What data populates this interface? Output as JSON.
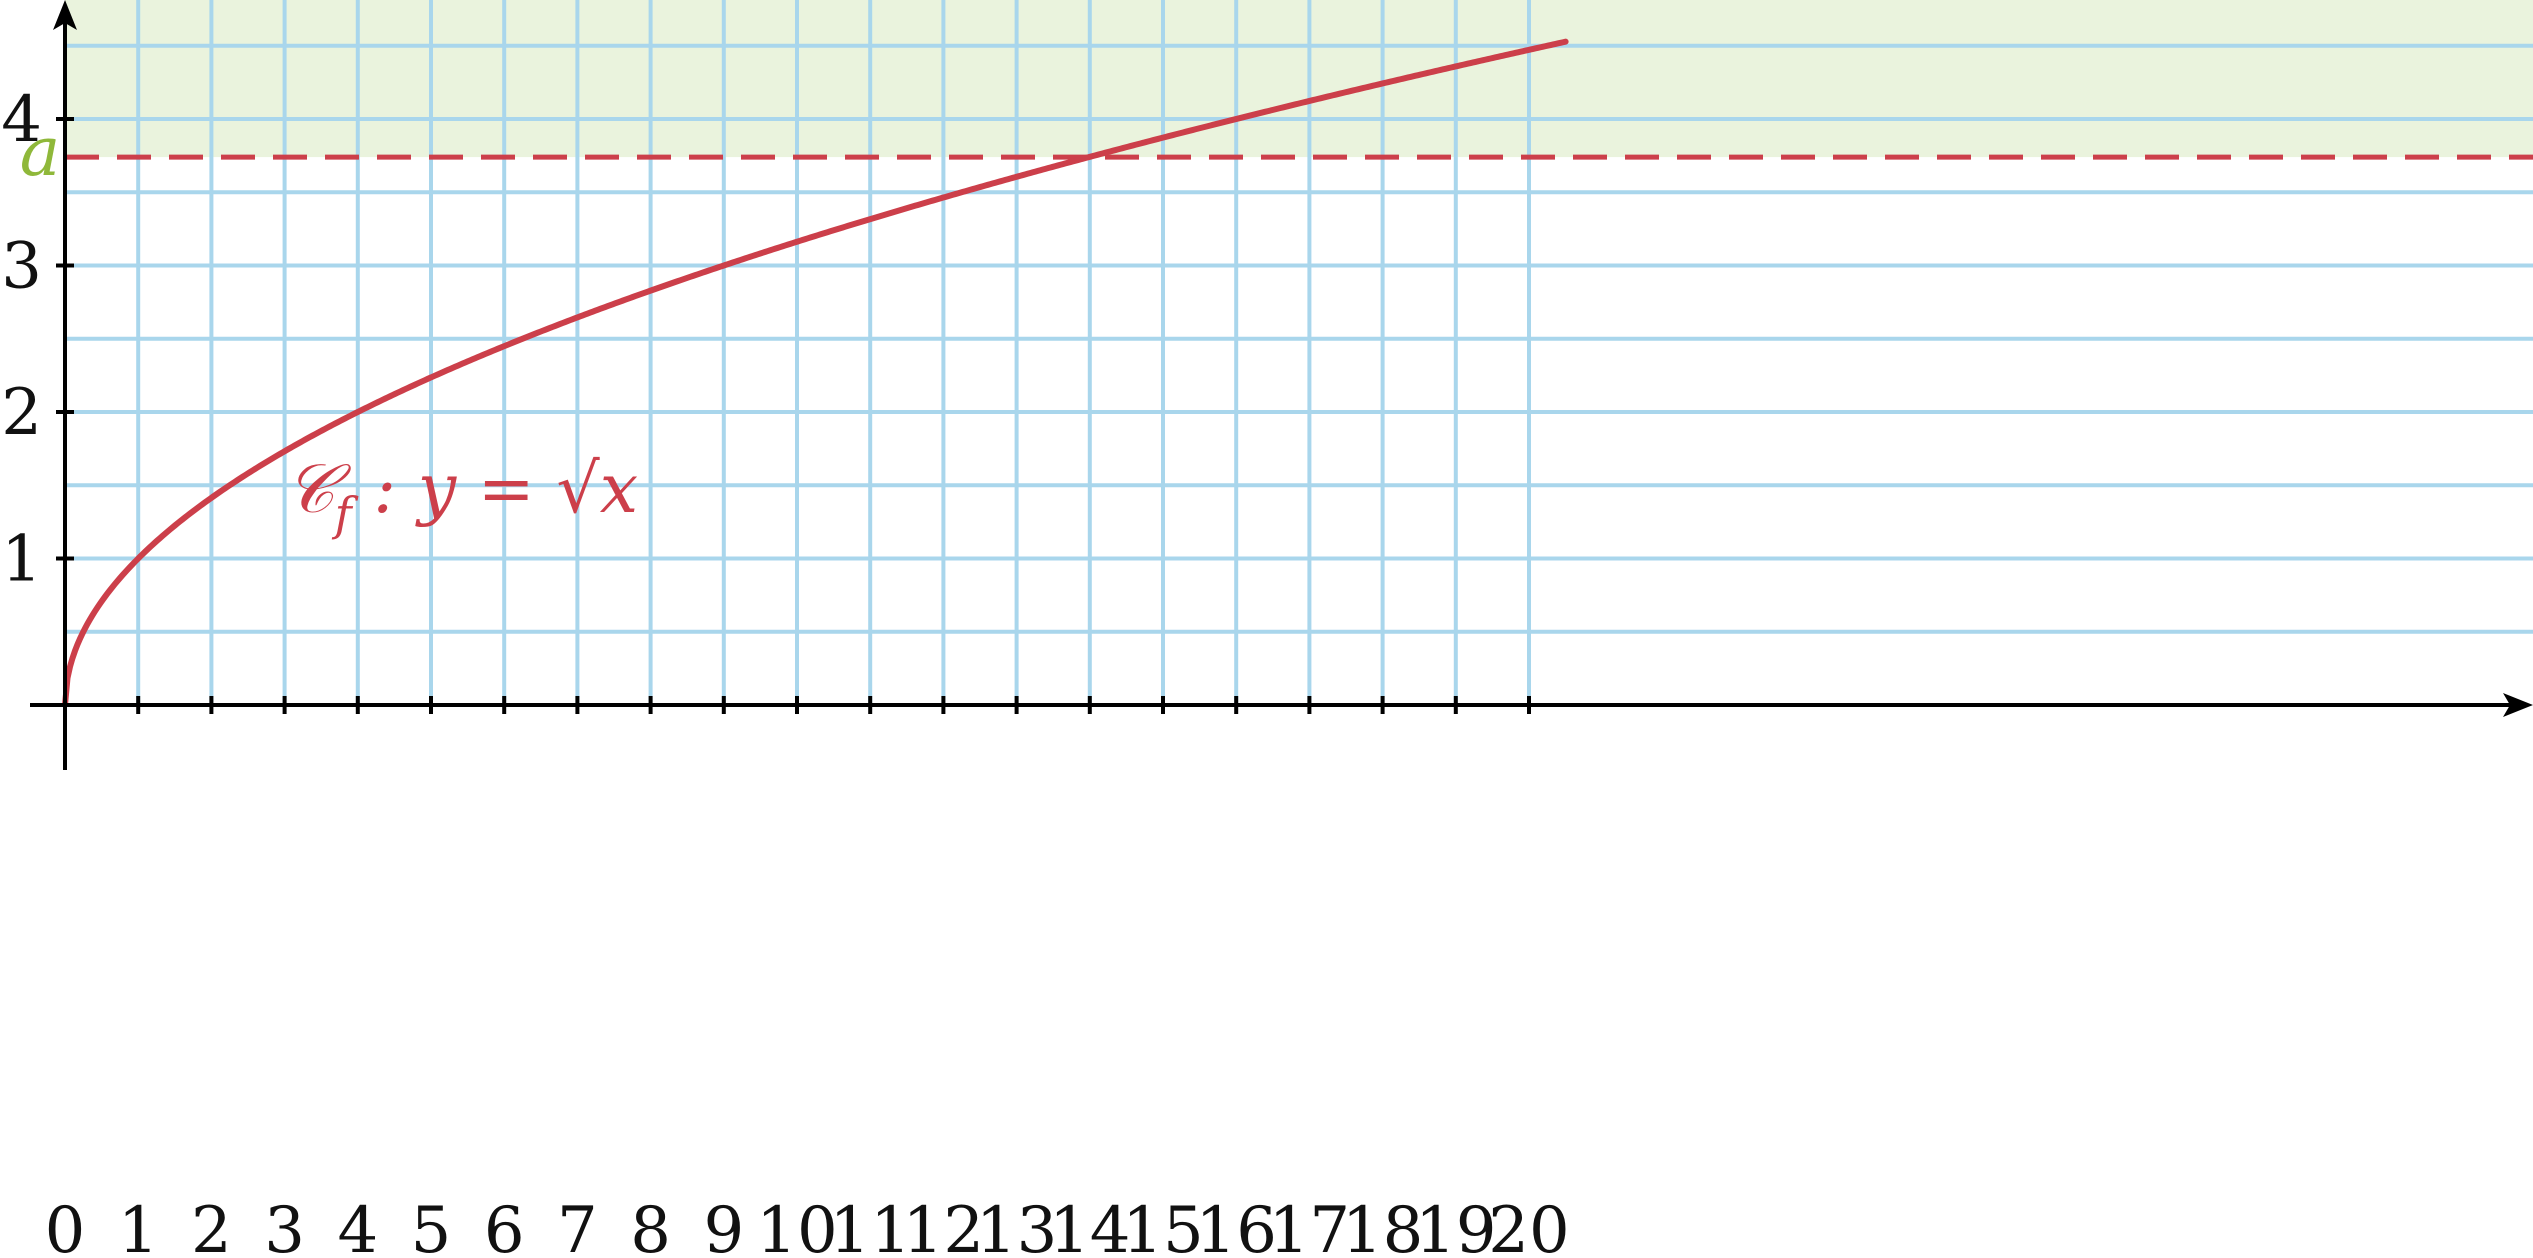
{
  "chart_data": {
    "type": "line",
    "title": "",
    "xlabel": "",
    "ylabel": "",
    "xlim": [
      0,
      20.5
    ],
    "ylim": [
      0,
      4.75
    ],
    "x_ticks": [
      0,
      1,
      2,
      3,
      4,
      5,
      6,
      7,
      8,
      9,
      10,
      11,
      12,
      13,
      14,
      15,
      16,
      17,
      18,
      19,
      20
    ],
    "x_tick_labels": [
      "0",
      "1",
      "2",
      "3",
      "4",
      "5",
      "6",
      "7",
      "8",
      "9",
      "10",
      "11",
      "12",
      "13",
      "14",
      "15",
      "16",
      "17",
      "18",
      "19",
      "20"
    ],
    "y_ticks": [
      1,
      2,
      3,
      4
    ],
    "y_tick_labels": [
      "1",
      "2",
      "3",
      "4"
    ],
    "grid": true,
    "grid_x_step": 1,
    "grid_y_step": 0.5,
    "series": [
      {
        "function": "sqrt",
        "x_range": [
          0,
          20.5
        ],
        "x": [
          0,
          1,
          4,
          9,
          14,
          16,
          20.5
        ],
        "values": [
          0,
          1,
          2,
          3,
          3.74,
          4,
          4.53
        ],
        "label_parts": {
          "script_c": "𝒞",
          "subscript": "f",
          "rest": " : y = √x"
        }
      }
    ],
    "annotations": [
      {
        "type": "hline",
        "y": 3.74,
        "label": "a",
        "style": "dashed"
      },
      {
        "type": "shaded_region",
        "y_from": 3.74,
        "y_to": 4.75
      }
    ],
    "colors": {
      "curve": "#cc3f4a",
      "grid": "#a9d6ec",
      "shade": "#eaf3dd",
      "a_label": "#8fb83a",
      "axis": "#000000"
    }
  }
}
